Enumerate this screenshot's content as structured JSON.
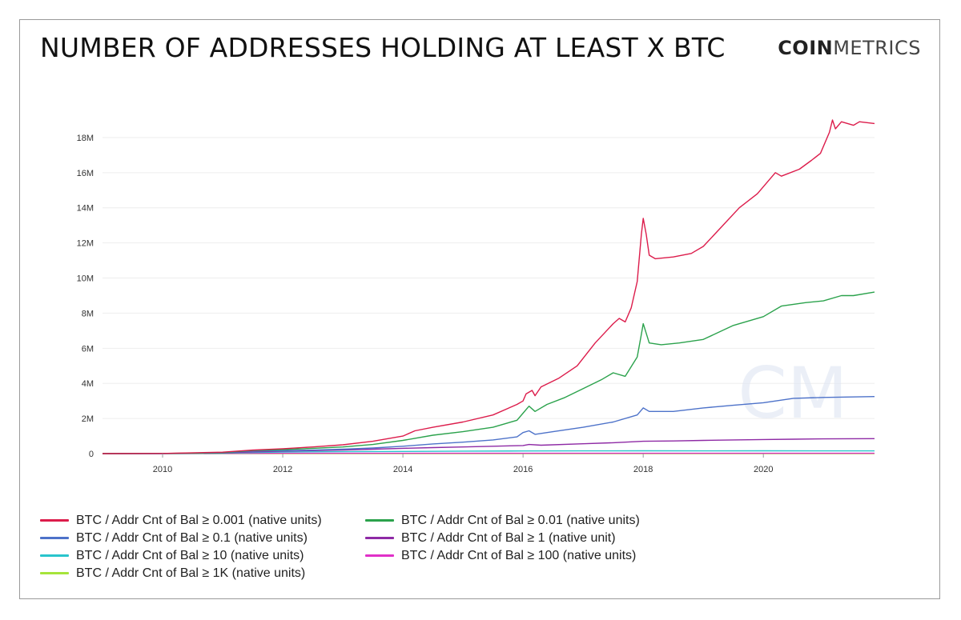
{
  "header": {
    "title": "NUMBER OF ADDRESSES HOLDING AT LEAST X BTC",
    "brand_bold": "COIN",
    "brand_light": "METRICS"
  },
  "chart_data": {
    "type": "line",
    "xlim": [
      2009.0,
      2021.85
    ],
    "ylim": [
      0,
      19000000
    ],
    "x_ticks": [
      2010,
      2012,
      2014,
      2016,
      2018,
      2020
    ],
    "x_tick_labels": [
      "2010",
      "2012",
      "2014",
      "2016",
      "2018",
      "2020"
    ],
    "y_ticks": [
      0,
      2000000,
      4000000,
      6000000,
      8000000,
      10000000,
      12000000,
      14000000,
      16000000,
      18000000
    ],
    "y_tick_labels": [
      "0",
      "2M",
      "4M",
      "6M",
      "8M",
      "10M",
      "12M",
      "14M",
      "16M",
      "18M"
    ],
    "grid": "horizontal",
    "legend_position": "bottom",
    "series": [
      {
        "name": "BTC / Addr Cnt of Bal ≥ 0.001 (native units)",
        "color": "#dc1c4b",
        "points": [
          [
            2009.0,
            0
          ],
          [
            2010.0,
            10000
          ],
          [
            2011.0,
            80000
          ],
          [
            2011.5,
            200000
          ],
          [
            2012.0,
            280000
          ],
          [
            2012.5,
            380000
          ],
          [
            2013.0,
            500000
          ],
          [
            2013.5,
            700000
          ],
          [
            2014.0,
            1000000
          ],
          [
            2014.2,
            1300000
          ],
          [
            2014.5,
            1500000
          ],
          [
            2015.0,
            1800000
          ],
          [
            2015.5,
            2200000
          ],
          [
            2015.9,
            2800000
          ],
          [
            2016.0,
            3000000
          ],
          [
            2016.05,
            3400000
          ],
          [
            2016.15,
            3600000
          ],
          [
            2016.2,
            3300000
          ],
          [
            2016.3,
            3800000
          ],
          [
            2016.6,
            4300000
          ],
          [
            2016.9,
            5000000
          ],
          [
            2017.2,
            6300000
          ],
          [
            2017.5,
            7400000
          ],
          [
            2017.6,
            7700000
          ],
          [
            2017.7,
            7500000
          ],
          [
            2017.8,
            8300000
          ],
          [
            2017.9,
            9800000
          ],
          [
            2017.97,
            12500000
          ],
          [
            2018.0,
            13400000
          ],
          [
            2018.05,
            12500000
          ],
          [
            2018.1,
            11300000
          ],
          [
            2018.2,
            11100000
          ],
          [
            2018.5,
            11200000
          ],
          [
            2018.8,
            11400000
          ],
          [
            2019.0,
            11800000
          ],
          [
            2019.3,
            12900000
          ],
          [
            2019.6,
            14000000
          ],
          [
            2019.9,
            14800000
          ],
          [
            2020.2,
            16000000
          ],
          [
            2020.3,
            15800000
          ],
          [
            2020.6,
            16200000
          ],
          [
            2020.8,
            16700000
          ],
          [
            2020.95,
            17100000
          ],
          [
            2021.1,
            18300000
          ],
          [
            2021.15,
            19000000
          ],
          [
            2021.2,
            18500000
          ],
          [
            2021.3,
            18900000
          ],
          [
            2021.5,
            18700000
          ],
          [
            2021.6,
            18900000
          ],
          [
            2021.85,
            18800000
          ]
        ]
      },
      {
        "name": "BTC / Addr Cnt of Bal ≥ 0.01 (native units)",
        "color": "#2ba24c",
        "points": [
          [
            2009.0,
            0
          ],
          [
            2010.0,
            8000
          ],
          [
            2011.0,
            60000
          ],
          [
            2011.5,
            180000
          ],
          [
            2012.0,
            230000
          ],
          [
            2012.5,
            300000
          ],
          [
            2013.0,
            380000
          ],
          [
            2013.5,
            520000
          ],
          [
            2014.0,
            750000
          ],
          [
            2014.5,
            1050000
          ],
          [
            2015.0,
            1250000
          ],
          [
            2015.5,
            1500000
          ],
          [
            2015.9,
            1900000
          ],
          [
            2016.0,
            2300000
          ],
          [
            2016.1,
            2700000
          ],
          [
            2016.2,
            2400000
          ],
          [
            2016.4,
            2800000
          ],
          [
            2016.7,
            3200000
          ],
          [
            2017.0,
            3700000
          ],
          [
            2017.3,
            4200000
          ],
          [
            2017.5,
            4600000
          ],
          [
            2017.7,
            4400000
          ],
          [
            2017.9,
            5500000
          ],
          [
            2017.97,
            6800000
          ],
          [
            2018.0,
            7400000
          ],
          [
            2018.1,
            6300000
          ],
          [
            2018.3,
            6200000
          ],
          [
            2018.6,
            6300000
          ],
          [
            2019.0,
            6500000
          ],
          [
            2019.5,
            7300000
          ],
          [
            2020.0,
            7800000
          ],
          [
            2020.3,
            8400000
          ],
          [
            2020.7,
            8600000
          ],
          [
            2021.0,
            8700000
          ],
          [
            2021.3,
            9000000
          ],
          [
            2021.5,
            9000000
          ],
          [
            2021.85,
            9200000
          ]
        ]
      },
      {
        "name": "BTC / Addr Cnt of Bal ≥ 0.1 (native units)",
        "color": "#4d72c9",
        "points": [
          [
            2009.0,
            0
          ],
          [
            2010.0,
            5000
          ],
          [
            2011.0,
            40000
          ],
          [
            2011.5,
            150000
          ],
          [
            2012.0,
            170000
          ],
          [
            2012.5,
            200000
          ],
          [
            2013.0,
            250000
          ],
          [
            2013.5,
            320000
          ],
          [
            2014.0,
            420000
          ],
          [
            2014.5,
            550000
          ],
          [
            2015.0,
            650000
          ],
          [
            2015.5,
            780000
          ],
          [
            2015.9,
            950000
          ],
          [
            2016.0,
            1200000
          ],
          [
            2016.1,
            1300000
          ],
          [
            2016.2,
            1100000
          ],
          [
            2016.5,
            1250000
          ],
          [
            2017.0,
            1500000
          ],
          [
            2017.5,
            1800000
          ],
          [
            2017.9,
            2200000
          ],
          [
            2018.0,
            2600000
          ],
          [
            2018.1,
            2400000
          ],
          [
            2018.5,
            2400000
          ],
          [
            2019.0,
            2600000
          ],
          [
            2019.5,
            2750000
          ],
          [
            2020.0,
            2900000
          ],
          [
            2020.5,
            3150000
          ],
          [
            2021.0,
            3200000
          ],
          [
            2021.85,
            3250000
          ]
        ]
      },
      {
        "name": "BTC / Addr Cnt of Bal ≥ 1 (native unit)",
        "color": "#8e2aa5",
        "points": [
          [
            2009.0,
            0
          ],
          [
            2010.0,
            3000
          ],
          [
            2011.0,
            30000
          ],
          [
            2011.5,
            100000
          ],
          [
            2012.0,
            140000
          ],
          [
            2012.5,
            170000
          ],
          [
            2013.0,
            200000
          ],
          [
            2013.5,
            250000
          ],
          [
            2014.0,
            300000
          ],
          [
            2014.5,
            340000
          ],
          [
            2015.0,
            380000
          ],
          [
            2015.5,
            420000
          ],
          [
            2016.0,
            460000
          ],
          [
            2016.1,
            520000
          ],
          [
            2016.3,
            480000
          ],
          [
            2017.0,
            560000
          ],
          [
            2017.5,
            620000
          ],
          [
            2018.0,
            700000
          ],
          [
            2018.5,
            720000
          ],
          [
            2019.0,
            750000
          ],
          [
            2019.5,
            780000
          ],
          [
            2020.0,
            800000
          ],
          [
            2020.5,
            820000
          ],
          [
            2021.0,
            840000
          ],
          [
            2021.85,
            850000
          ]
        ]
      },
      {
        "name": "BTC / Addr Cnt of Bal ≥ 10 (native units)",
        "color": "#29c4cc",
        "points": [
          [
            2009.0,
            0
          ],
          [
            2010.0,
            2000
          ],
          [
            2011.0,
            20000
          ],
          [
            2011.5,
            60000
          ],
          [
            2012.0,
            90000
          ],
          [
            2013.0,
            110000
          ],
          [
            2014.0,
            125000
          ],
          [
            2015.0,
            140000
          ],
          [
            2016.0,
            150000
          ],
          [
            2017.0,
            155000
          ],
          [
            2018.0,
            160000
          ],
          [
            2019.0,
            155000
          ],
          [
            2020.0,
            158000
          ],
          [
            2021.0,
            155000
          ],
          [
            2021.85,
            155000
          ]
        ]
      },
      {
        "name": "BTC / Addr Cnt of Bal ≥ 100 (native units)",
        "color": "#e030c8",
        "points": [
          [
            2009.0,
            0
          ],
          [
            2010.0,
            1000
          ],
          [
            2011.0,
            10000
          ],
          [
            2012.0,
            16000
          ],
          [
            2014.0,
            17000
          ],
          [
            2016.0,
            16000
          ],
          [
            2018.0,
            16000
          ],
          [
            2020.0,
            16000
          ],
          [
            2021.85,
            16000
          ]
        ]
      },
      {
        "name": "BTC / Addr Cnt of Bal ≥ 1K (native units)",
        "color": "#a6e43a",
        "points": [
          [
            2009.0,
            0
          ],
          [
            2010.0,
            500
          ],
          [
            2011.0,
            1500
          ],
          [
            2012.0,
            2000
          ],
          [
            2014.0,
            2100
          ],
          [
            2016.0,
            2100
          ],
          [
            2018.0,
            2100
          ],
          [
            2020.0,
            2200
          ],
          [
            2021.85,
            2200
          ]
        ]
      }
    ]
  },
  "watermark": "CM"
}
